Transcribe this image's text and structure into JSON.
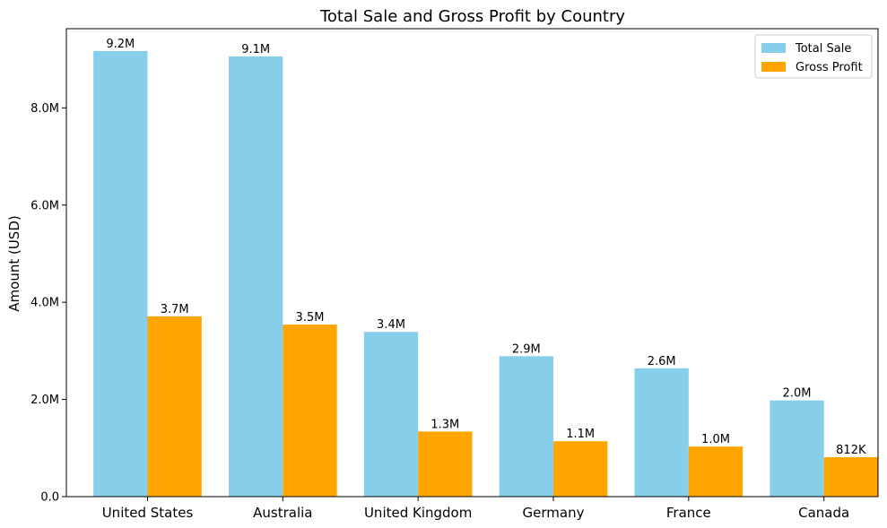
{
  "chart_data": {
    "type": "bar",
    "title": "Total Sale and Gross Profit by Country",
    "xlabel": "",
    "ylabel": "Amount (USD)",
    "categories": [
      "United States",
      "Australia",
      "United Kingdom",
      "Germany",
      "France",
      "Canada"
    ],
    "series": [
      {
        "name": "Total Sale",
        "color": "#87CEEB",
        "values": [
          9170000,
          9060000,
          3390000,
          2890000,
          2640000,
          1980000
        ],
        "labels": [
          "9.2M",
          "9.1M",
          "3.4M",
          "2.9M",
          "2.6M",
          "2.0M"
        ]
      },
      {
        "name": "Gross Profit",
        "color": "#FFA500",
        "values": [
          3710000,
          3540000,
          1340000,
          1140000,
          1030000,
          812000
        ],
        "labels": [
          "3.7M",
          "3.5M",
          "1.3M",
          "1.1M",
          "1.0M",
          "812K"
        ]
      }
    ],
    "ylim": [
      0,
      9630000
    ],
    "yticks": [
      0,
      2000000,
      4000000,
      6000000,
      8000000
    ],
    "ytick_labels": [
      "0.0",
      "2.0M",
      "4.0M",
      "6.0M",
      "8.0M"
    ],
    "grid": false,
    "legend_position": "top-right"
  }
}
